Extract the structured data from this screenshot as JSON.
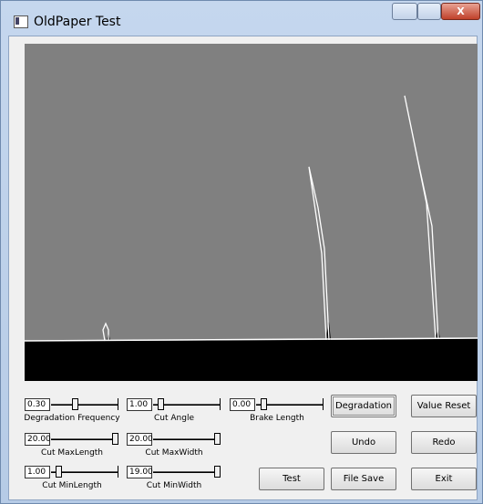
{
  "window": {
    "title": "OldPaper Test"
  },
  "sliders": [
    {
      "value": "0.30",
      "label": "Degradation Frequency"
    },
    {
      "value": "1.00",
      "label": "Cut Angle"
    },
    {
      "value": "0.00",
      "label": "Brake Length"
    },
    {
      "value": "20.00",
      "label": "Cut MaxLength"
    },
    {
      "value": "20.00",
      "label": "Cut MaxWidth"
    },
    {
      "value": "1.00",
      "label": "Cut MinLength"
    },
    {
      "value": "19.00",
      "label": "Cut MinWidth"
    }
  ],
  "buttons": [
    "Degradation",
    "Value Reset",
    "Undo",
    "Redo",
    "Test",
    "File Save",
    "Exit"
  ]
}
